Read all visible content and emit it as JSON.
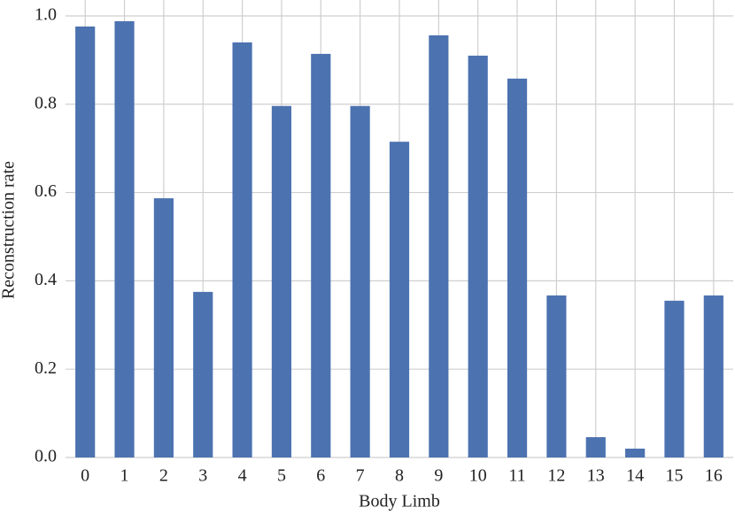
{
  "chart_data": {
    "type": "bar",
    "x_label": "Body Limb",
    "y_label": "Reconstruction rate",
    "categories": [
      "0",
      "1",
      "2",
      "3",
      "4",
      "5",
      "6",
      "7",
      "8",
      "9",
      "10",
      "11",
      "12",
      "13",
      "14",
      "15",
      "16"
    ],
    "values": [
      0.976,
      0.988,
      0.587,
      0.375,
      0.94,
      0.796,
      0.914,
      0.796,
      0.715,
      0.956,
      0.91,
      0.858,
      0.367,
      0.046,
      0.02,
      0.355,
      0.367
    ],
    "color": "#4c72b0",
    "ylim": [
      0,
      1.036
    ],
    "yticks": [
      {
        "value": 0,
        "label": "0.0"
      },
      0.2,
      0.4,
      0.6,
      0.8,
      {
        "value": 1,
        "label": "1.0"
      }
    ],
    "grid": true
  }
}
